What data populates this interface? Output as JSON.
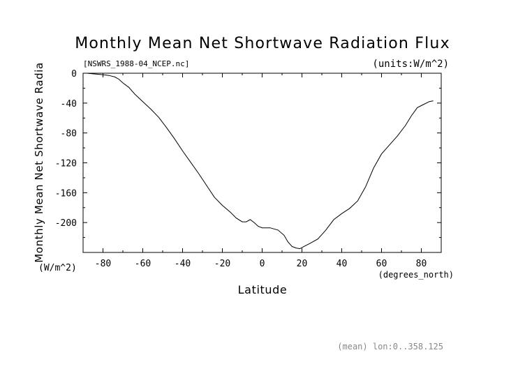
{
  "chart_data": {
    "type": "line",
    "title": "Monthly Mean Net Shortwave Radiation Flux",
    "subtitle_left": "[NSWRS_1988-04_NCEP.nc]",
    "subtitle_right": "(units:W/m^2)",
    "xlabel": "Latitude",
    "xunits": "(degrees_north)",
    "ylabel_line1": "Monthly Mean Net Shortwave Radia",
    "ylabel_line2": "(W/m^2)",
    "footer": "(mean) lon:0..358.125",
    "xlim": [
      -90,
      90
    ],
    "ylim": [
      -240,
      0
    ],
    "xticks": [
      -80,
      -60,
      -40,
      -20,
      0,
      20,
      40,
      60,
      80
    ],
    "yticks": [
      0,
      -40,
      -80,
      -120,
      -160,
      -200
    ],
    "series": [
      {
        "x": [
          -88,
          -84,
          -80,
          -77,
          -74,
          -72,
          -70,
          -67,
          -64,
          -60,
          -56,
          -52,
          -48,
          -44,
          -40,
          -36,
          -32,
          -28,
          -24,
          -20,
          -16,
          -13,
          -10,
          -8,
          -6,
          -4,
          -2,
          0,
          4,
          8,
          11,
          13,
          15,
          17,
          19,
          21,
          24,
          28,
          32,
          36,
          40,
          44,
          48,
          52,
          56,
          60,
          64,
          68,
          72,
          75,
          78,
          81,
          84,
          86
        ],
        "y": [
          0,
          -1,
          -2,
          -3,
          -5,
          -8,
          -13,
          -19,
          -28,
          -38,
          -48,
          -59,
          -73,
          -88,
          -104,
          -119,
          -134,
          -150,
          -166,
          -177,
          -186,
          -194,
          -199,
          -199,
          -196,
          -200,
          -205,
          -207,
          -207,
          -210,
          -217,
          -226,
          -232,
          -234,
          -235,
          -232,
          -228,
          -222,
          -210,
          -196,
          -188,
          -181,
          -171,
          -152,
          -127,
          -108,
          -96,
          -84,
          -70,
          -57,
          -46,
          -42,
          -38,
          -37
        ]
      }
    ]
  }
}
